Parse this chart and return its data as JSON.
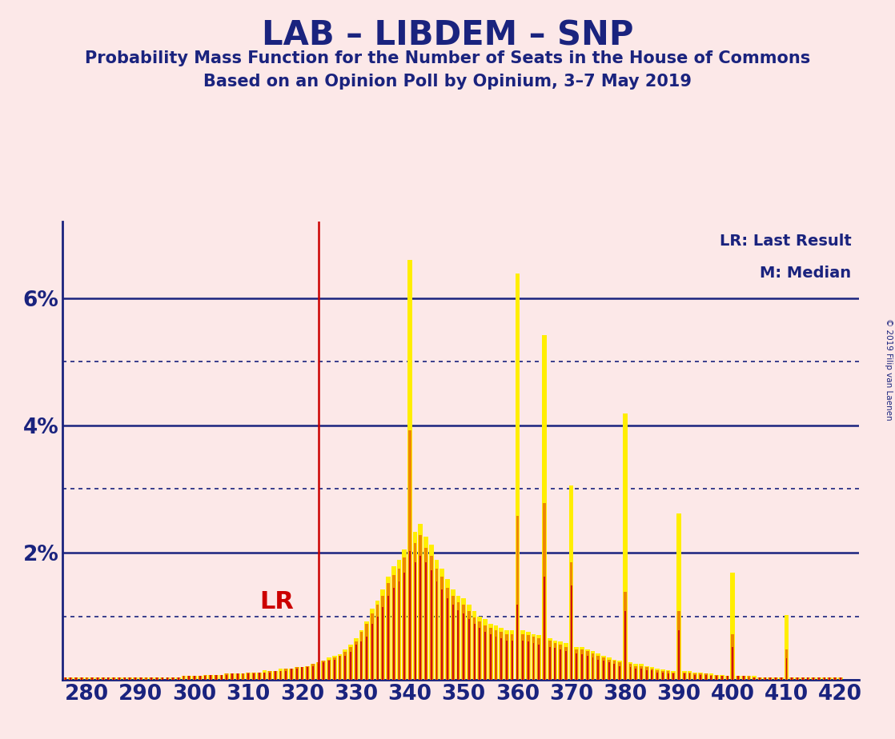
{
  "title": "LAB – LIBDEM – SNP",
  "subtitle1": "Probability Mass Function for the Number of Seats in the House of Commons",
  "subtitle2": "Based on an Opinion Poll by Opinium, 3–7 May 2019",
  "copyright": "© 2019 Filip van Laenen",
  "lr_label": "LR",
  "lr_x": 323,
  "legend_lr": "LR: Last Result",
  "legend_m": "M: Median",
  "background_color": "#fce8e8",
  "title_color": "#1a237e",
  "axis_color": "#1a237e",
  "lr_line_color": "#cc0000",
  "lr_text_color": "#cc0000",
  "x_min": 275.5,
  "x_max": 423.5,
  "y_min": 0.0,
  "y_max": 7.2,
  "xticks": [
    280,
    290,
    300,
    310,
    320,
    330,
    340,
    350,
    360,
    370,
    380,
    390,
    400,
    410,
    420
  ],
  "bar_colors": [
    "#cc1111",
    "#ee8800",
    "#ffee00"
  ],
  "seats": [
    276,
    277,
    278,
    279,
    280,
    281,
    282,
    283,
    284,
    285,
    286,
    287,
    288,
    289,
    290,
    291,
    292,
    293,
    294,
    295,
    296,
    297,
    298,
    299,
    300,
    301,
    302,
    303,
    304,
    305,
    306,
    307,
    308,
    309,
    310,
    311,
    312,
    313,
    314,
    315,
    316,
    317,
    318,
    319,
    320,
    321,
    322,
    323,
    324,
    325,
    326,
    327,
    328,
    329,
    330,
    331,
    332,
    333,
    334,
    335,
    336,
    337,
    338,
    339,
    340,
    341,
    342,
    343,
    344,
    345,
    346,
    347,
    348,
    349,
    350,
    351,
    352,
    353,
    354,
    355,
    356,
    357,
    358,
    359,
    360,
    361,
    362,
    363,
    364,
    365,
    366,
    367,
    368,
    369,
    370,
    371,
    372,
    373,
    374,
    375,
    376,
    377,
    378,
    379,
    380,
    381,
    382,
    383,
    384,
    385,
    386,
    387,
    388,
    389,
    390,
    391,
    392,
    393,
    394,
    395,
    396,
    397,
    398,
    399,
    400,
    401,
    402,
    403,
    404,
    405,
    406,
    407,
    408,
    409,
    410,
    411,
    412,
    413,
    414,
    415,
    416,
    417,
    418,
    419,
    420
  ],
  "red": [
    0.04,
    0.04,
    0.04,
    0.04,
    0.04,
    0.04,
    0.04,
    0.04,
    0.04,
    0.04,
    0.04,
    0.04,
    0.04,
    0.04,
    0.04,
    0.04,
    0.04,
    0.04,
    0.04,
    0.04,
    0.04,
    0.04,
    0.06,
    0.06,
    0.06,
    0.06,
    0.06,
    0.08,
    0.08,
    0.08,
    0.08,
    0.1,
    0.1,
    0.1,
    0.1,
    0.1,
    0.11,
    0.11,
    0.11,
    0.14,
    0.14,
    0.14,
    0.18,
    0.18,
    0.2,
    0.2,
    0.22,
    0.25,
    0.28,
    0.3,
    0.32,
    0.38,
    0.38,
    0.44,
    0.56,
    0.6,
    0.68,
    0.88,
    1.0,
    1.15,
    1.32,
    1.45,
    1.55,
    1.68,
    2.02,
    1.85,
    1.95,
    1.85,
    1.72,
    1.55,
    1.42,
    1.28,
    1.18,
    1.1,
    1.05,
    0.95,
    0.88,
    0.82,
    0.75,
    0.72,
    0.68,
    0.65,
    0.62,
    0.62,
    1.18,
    0.62,
    0.6,
    0.58,
    0.55,
    1.62,
    0.52,
    0.5,
    0.48,
    0.45,
    1.48,
    0.42,
    0.4,
    0.38,
    0.35,
    0.32,
    0.3,
    0.28,
    0.25,
    0.22,
    1.08,
    0.2,
    0.18,
    0.18,
    0.15,
    0.15,
    0.12,
    0.12,
    0.1,
    0.1,
    0.78,
    0.1,
    0.1,
    0.08,
    0.08,
    0.08,
    0.06,
    0.06,
    0.06,
    0.06,
    0.52,
    0.06,
    0.06,
    0.04,
    0.04,
    0.04,
    0.04,
    0.04,
    0.04,
    0.04,
    0.34,
    0.04,
    0.04,
    0.04,
    0.04,
    0.04,
    0.04,
    0.04,
    0.04,
    0.04,
    0.04
  ],
  "orange": [
    0.04,
    0.04,
    0.04,
    0.04,
    0.04,
    0.04,
    0.04,
    0.04,
    0.04,
    0.04,
    0.04,
    0.04,
    0.04,
    0.04,
    0.04,
    0.04,
    0.04,
    0.04,
    0.04,
    0.04,
    0.04,
    0.04,
    0.06,
    0.06,
    0.06,
    0.06,
    0.08,
    0.08,
    0.08,
    0.08,
    0.1,
    0.1,
    0.1,
    0.1,
    0.11,
    0.11,
    0.11,
    0.11,
    0.14,
    0.14,
    0.14,
    0.18,
    0.18,
    0.2,
    0.2,
    0.22,
    0.25,
    0.28,
    0.3,
    0.32,
    0.35,
    0.38,
    0.44,
    0.52,
    0.6,
    0.75,
    0.88,
    1.05,
    1.18,
    1.32,
    1.52,
    1.65,
    1.75,
    1.92,
    3.92,
    2.15,
    2.28,
    2.08,
    1.95,
    1.75,
    1.62,
    1.45,
    1.32,
    1.22,
    1.18,
    1.08,
    0.98,
    0.92,
    0.85,
    0.82,
    0.78,
    0.75,
    0.72,
    0.72,
    2.58,
    0.72,
    0.7,
    0.68,
    0.65,
    2.78,
    0.62,
    0.58,
    0.55,
    0.52,
    1.85,
    0.48,
    0.48,
    0.45,
    0.42,
    0.38,
    0.35,
    0.32,
    0.3,
    0.28,
    1.38,
    0.25,
    0.22,
    0.22,
    0.2,
    0.18,
    0.15,
    0.14,
    0.14,
    0.12,
    1.08,
    0.12,
    0.12,
    0.1,
    0.1,
    0.1,
    0.08,
    0.08,
    0.06,
    0.06,
    0.72,
    0.06,
    0.06,
    0.06,
    0.04,
    0.04,
    0.04,
    0.04,
    0.04,
    0.04,
    0.48,
    0.04,
    0.04,
    0.04,
    0.04,
    0.04,
    0.04,
    0.04,
    0.04,
    0.04,
    0.04
  ],
  "yellow": [
    0.04,
    0.04,
    0.04,
    0.04,
    0.04,
    0.04,
    0.04,
    0.04,
    0.04,
    0.04,
    0.04,
    0.04,
    0.04,
    0.04,
    0.04,
    0.04,
    0.04,
    0.04,
    0.04,
    0.04,
    0.04,
    0.04,
    0.06,
    0.06,
    0.06,
    0.06,
    0.08,
    0.08,
    0.08,
    0.08,
    0.1,
    0.1,
    0.1,
    0.1,
    0.12,
    0.11,
    0.11,
    0.15,
    0.14,
    0.14,
    0.18,
    0.18,
    0.18,
    0.2,
    0.2,
    0.22,
    0.25,
    0.28,
    0.3,
    0.35,
    0.38,
    0.4,
    0.48,
    0.56,
    0.65,
    0.78,
    0.92,
    1.12,
    1.25,
    1.42,
    1.62,
    1.78,
    1.88,
    2.05,
    6.6,
    2.32,
    2.45,
    2.25,
    2.12,
    1.88,
    1.75,
    1.58,
    1.42,
    1.32,
    1.28,
    1.18,
    1.08,
    1.0,
    0.95,
    0.88,
    0.85,
    0.82,
    0.78,
    0.78,
    6.38,
    0.78,
    0.75,
    0.72,
    0.7,
    5.42,
    0.65,
    0.62,
    0.6,
    0.58,
    3.05,
    0.52,
    0.52,
    0.48,
    0.45,
    0.42,
    0.38,
    0.35,
    0.32,
    0.3,
    4.18,
    0.28,
    0.25,
    0.25,
    0.22,
    0.2,
    0.18,
    0.16,
    0.15,
    0.14,
    2.62,
    0.14,
    0.14,
    0.12,
    0.12,
    0.1,
    0.1,
    0.08,
    0.08,
    0.06,
    1.68,
    0.06,
    0.06,
    0.06,
    0.06,
    0.04,
    0.04,
    0.04,
    0.04,
    0.04,
    1.02,
    0.04,
    0.04,
    0.04,
    0.04,
    0.04,
    0.04,
    0.04,
    0.04,
    0.04,
    0.04
  ]
}
